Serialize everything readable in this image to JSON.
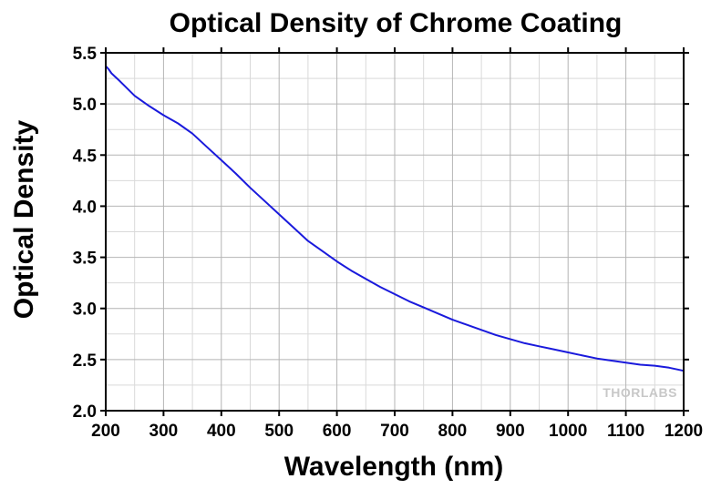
{
  "chart_data": {
    "type": "line",
    "title": "Optical Density of Chrome Coating",
    "xlabel": "Wavelength (nm)",
    "ylabel": "Optical Density",
    "xlim": [
      200,
      1200
    ],
    "ylim": [
      2.0,
      5.5
    ],
    "x_ticks": [
      200,
      300,
      400,
      500,
      600,
      700,
      800,
      900,
      1000,
      1100,
      1200
    ],
    "x_tick_labels": [
      "200",
      "300",
      "400",
      "500",
      "600",
      "700",
      "800",
      "900",
      "1000",
      "1100",
      "1200"
    ],
    "y_ticks": [
      2.0,
      2.5,
      3.0,
      3.5,
      4.0,
      4.5,
      5.0,
      5.5
    ],
    "y_tick_labels": [
      "2.0",
      "2.5",
      "3.0",
      "3.5",
      "4.0",
      "4.5",
      "5.0",
      "5.5"
    ],
    "grid": true,
    "legend": "none",
    "series": [
      {
        "color": "#1a1adc",
        "x": [
          200,
          205,
          210,
          225,
          250,
          275,
          300,
          325,
          350,
          375,
          400,
          425,
          450,
          475,
          500,
          525,
          550,
          575,
          600,
          625,
          650,
          675,
          700,
          725,
          750,
          775,
          800,
          825,
          850,
          875,
          900,
          925,
          950,
          975,
          1000,
          1025,
          1050,
          1075,
          1100,
          1125,
          1150,
          1175,
          1200
        ],
        "y": [
          5.37,
          5.34,
          5.3,
          5.22,
          5.08,
          4.98,
          4.89,
          4.81,
          4.71,
          4.58,
          4.45,
          4.32,
          4.18,
          4.05,
          3.92,
          3.79,
          3.66,
          3.56,
          3.46,
          3.37,
          3.29,
          3.21,
          3.14,
          3.07,
          3.01,
          2.95,
          2.89,
          2.84,
          2.79,
          2.74,
          2.7,
          2.66,
          2.63,
          2.6,
          2.57,
          2.54,
          2.51,
          2.49,
          2.47,
          2.45,
          2.44,
          2.42,
          2.39
        ]
      }
    ]
  },
  "watermark": "THORLABS"
}
